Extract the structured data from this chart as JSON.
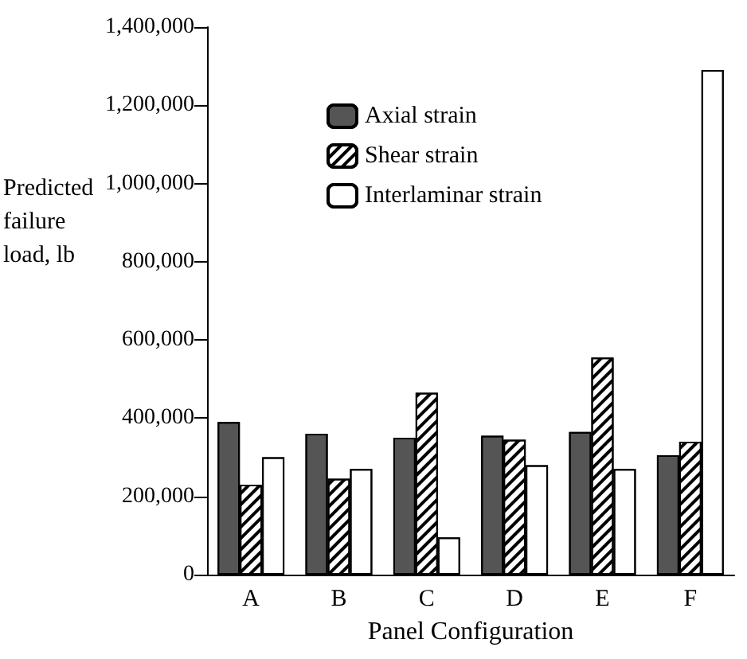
{
  "chart_data": {
    "type": "bar",
    "xlabel": "Panel Configuration",
    "ylabel": "Predicted failure load, lb",
    "categories": [
      "A",
      "B",
      "C",
      "D",
      "E",
      "F"
    ],
    "series": [
      {
        "name": "Axial strain",
        "color": "#555555",
        "values": [
          390000,
          360000,
          350000,
          355000,
          365000,
          305000
        ]
      },
      {
        "name": "Shear strain",
        "color": "#ffffff",
        "values": [
          230000,
          245000,
          465000,
          345000,
          555000,
          340000
        ]
      },
      {
        "name": "Interlaminar strain",
        "color": "#ffffff",
        "values": [
          300000,
          270000,
          95000,
          280000,
          270000,
          1290000
        ]
      }
    ],
    "ylim": [
      0,
      1400000
    ],
    "yticks": [
      0,
      {
        "value": 200000,
        "label": "200,000"
      },
      {
        "value": 400000,
        "label": "400,000"
      },
      {
        "value": 600000,
        "label": "600,000"
      },
      {
        "value": 800000,
        "label": "800,000"
      },
      {
        "value": 1000000,
        "label": "1,000,000"
      },
      {
        "value": 1200000,
        "label": "1,200,000"
      },
      {
        "value": 1400000,
        "label": "1,400,000"
      }
    ],
    "grid": false,
    "legend": "top"
  }
}
